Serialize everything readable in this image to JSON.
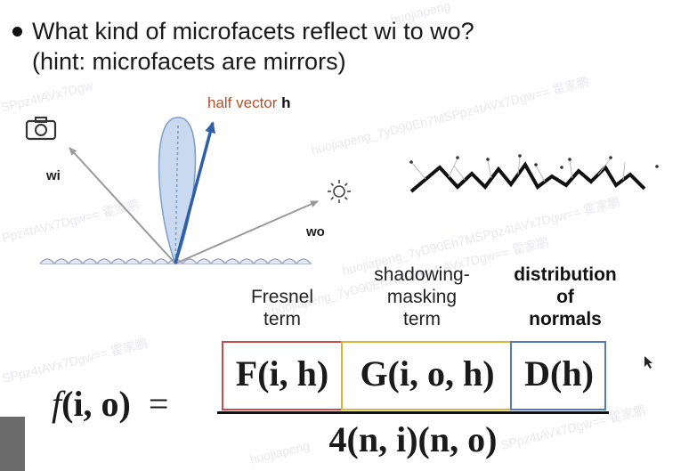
{
  "bullet": {
    "line1": "What kind of microfacets reflect wi to wo?",
    "line2": "(hint: microfacets are mirrors)"
  },
  "diagram": {
    "half_vector_prefix": "half vector ",
    "half_vector_symbol": "h",
    "wi_label": "wi",
    "wo_label": "wo"
  },
  "terms": {
    "fresnel": [
      "Fresnel",
      "term"
    ],
    "shadowing": [
      "shadowing-",
      "masking",
      "term"
    ],
    "distribution": [
      "distribution",
      "of",
      "normals"
    ]
  },
  "formula": {
    "lhs_f": "f",
    "lhs_args": "(i, o)",
    "equals": "=",
    "fresnel_expr": "F(i, h)",
    "shadowing_expr": "G(i, o, h)",
    "distribution_expr": "D(h)",
    "denominator": "4(n, i)(n, o)"
  },
  "watermarks": [
    "huojiapeng",
    "SPpz4tAVx7Dgw",
    "huojiapeng_7yD90Eh7MSPpz4tAVx7Dgw== 霍家鹏",
    "Ppz4tAVx7Dgw== 霍家鹏",
    "huojiapeng_7yD90Eh7MSPpz4tAVx7Dgw== 霍家鹏",
    "huojiapeng_7yD90Eh7MSPpz4tAVx7Dgw== 霍家鹏",
    "SPpz4tAVx7Dgw== 霍家鹏",
    "huojiapeng",
    "SPpz4tAVx7Dgw== 霍家鹏"
  ],
  "colors": {
    "half_vector": "#2f5fa8",
    "half_vector_label": "#b5502b",
    "lobe_fill": "#c9daf0",
    "lobe_stroke": "#7d9cc6",
    "ray": "#9a9a9a",
    "surface": "#9aa7c7",
    "fresnel_box": "#c94b4b",
    "shadowing_box": "#d9b53a",
    "distribution_box": "#4f79c2"
  }
}
